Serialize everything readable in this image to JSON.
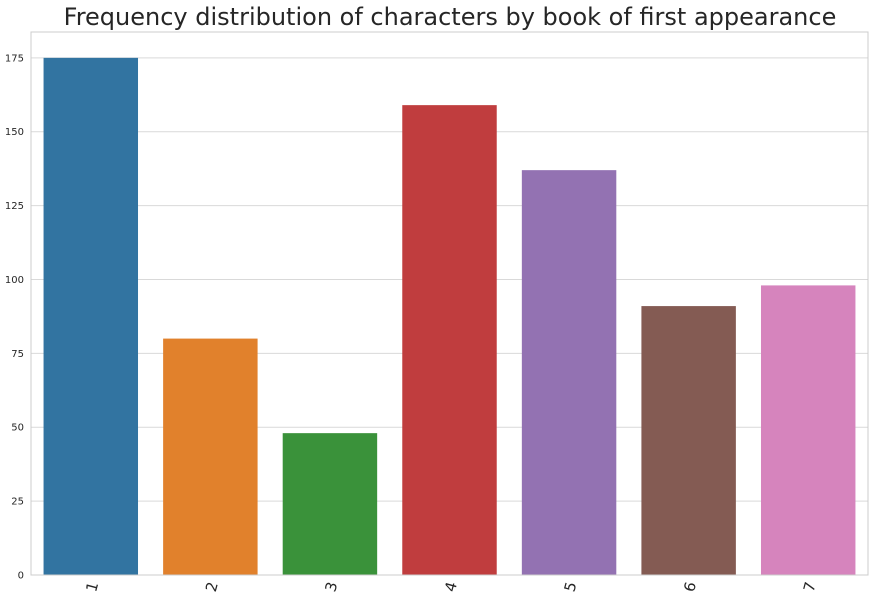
{
  "chart_data": {
    "type": "bar",
    "title": "Frequency distribution of characters by book of first appearance",
    "xlabel": "",
    "ylabel": "",
    "categories": [
      "1",
      "2",
      "3",
      "4",
      "5",
      "6",
      "7"
    ],
    "values": [
      175,
      80,
      48,
      159,
      137,
      91,
      98
    ],
    "ylim": [
      0,
      183.75
    ],
    "yticks": [
      "0",
      "25",
      "50",
      "75",
      "100",
      "125",
      "150",
      "175"
    ],
    "grid": "horizontal",
    "legend": "none",
    "colors": [
      "#3274a1",
      "#e1812c",
      "#3a923a",
      "#c03d3e",
      "#9372b2",
      "#845b53",
      "#d684bd"
    ]
  }
}
